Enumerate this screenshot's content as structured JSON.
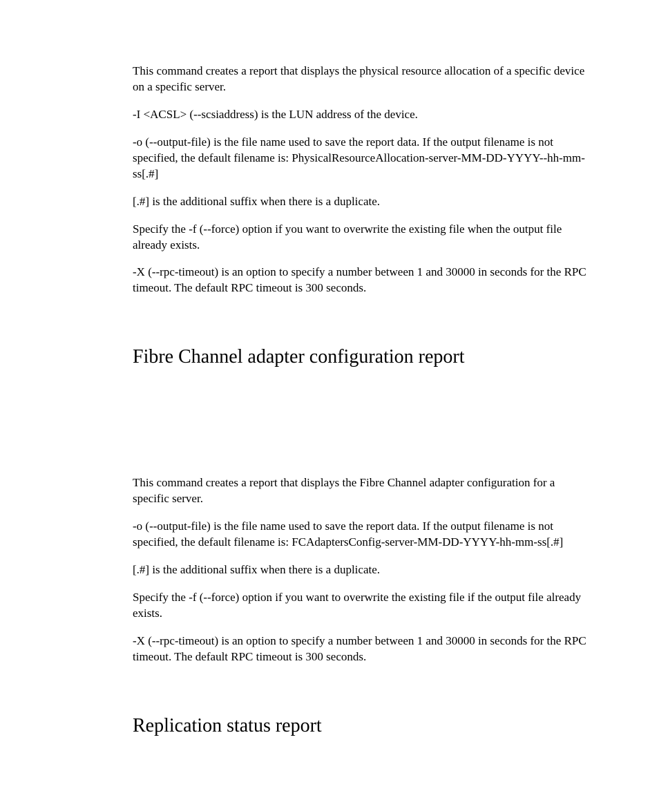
{
  "section1": {
    "paras": [
      "This command creates a report that displays the physical resource allocation of a specific device on a specific server.",
      "-I <ACSL> (--scsiaddress) is the LUN address of the device.",
      "-o (--output-file) is the file name used to save the report data. If the output filename is not specified, the default filename is: PhysicalResourceAllocation-server-MM-DD-YYYY--hh-mm-ss[.#]",
      "[.#] is the additional suffix when there is a duplicate.",
      "Specify the -f (--force) option if you want to overwrite the existing file when the output file already exists.",
      "-X (--rpc-timeout) is an option to specify a number between 1 and 30000 in seconds for the RPC timeout. The default RPC timeout is 300 seconds."
    ]
  },
  "heading_fc": "Fibre Channel adapter configuration report",
  "section2": {
    "paras": [
      "This command creates a report that displays the Fibre Channel adapter configuration for a specific server.",
      "-o (--output-file) is the file name used to save the report data. If the output filename is not specified, the default filename is: FCAdaptersConfig-server-MM-DD-YYYY-hh-mm-ss[.#]",
      "[.#] is the additional suffix when there is a duplicate.",
      "Specify the -f (--force) option if you want to overwrite the existing file if the output file already exists.",
      "-X (--rpc-timeout) is an option to specify a number between 1 and 30000 in seconds for the RPC timeout. The default RPC timeout is 300 seconds."
    ]
  },
  "heading_rep": "Replication status report"
}
